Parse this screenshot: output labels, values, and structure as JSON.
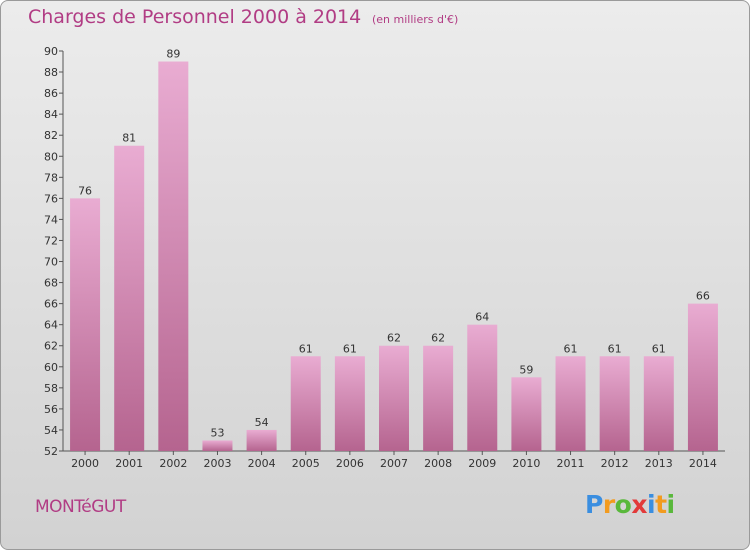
{
  "header": {
    "title": "Charges de Personnel 2000 à 2014",
    "subtitle": "(en milliers d'€)"
  },
  "footer": {
    "town": "MONTéGUT",
    "brand_letters": [
      "P",
      "r",
      "o",
      "x",
      "i",
      "t",
      "i"
    ],
    "brand_colors": [
      "#3a8ee0",
      "#f29b1f",
      "#59b83b",
      "#e23a3a",
      "#3a8ee0",
      "#f29b1f",
      "#59b83b"
    ]
  },
  "colors": {
    "bar_top": "#e9acd2",
    "bar_bottom": "#b5648f",
    "text": "#b13c84",
    "axis": "#555555"
  },
  "chart_data": {
    "type": "bar",
    "title": "Charges de Personnel 2000 à 2014",
    "subtitle": "(en milliers d'€)",
    "categories": [
      "2000",
      "2001",
      "2002",
      "2003",
      "2004",
      "2005",
      "2006",
      "2007",
      "2008",
      "2009",
      "2010",
      "2011",
      "2012",
      "2013",
      "2014"
    ],
    "values": [
      76,
      81,
      89,
      53,
      54,
      61,
      61,
      62,
      62,
      64,
      59,
      61,
      61,
      61,
      66
    ],
    "ylim": [
      52,
      90
    ],
    "yticks": [
      52,
      54,
      56,
      58,
      60,
      62,
      64,
      66,
      68,
      70,
      72,
      74,
      76,
      78,
      80,
      82,
      84,
      86,
      88,
      90
    ],
    "grid": false,
    "legend": "none"
  }
}
